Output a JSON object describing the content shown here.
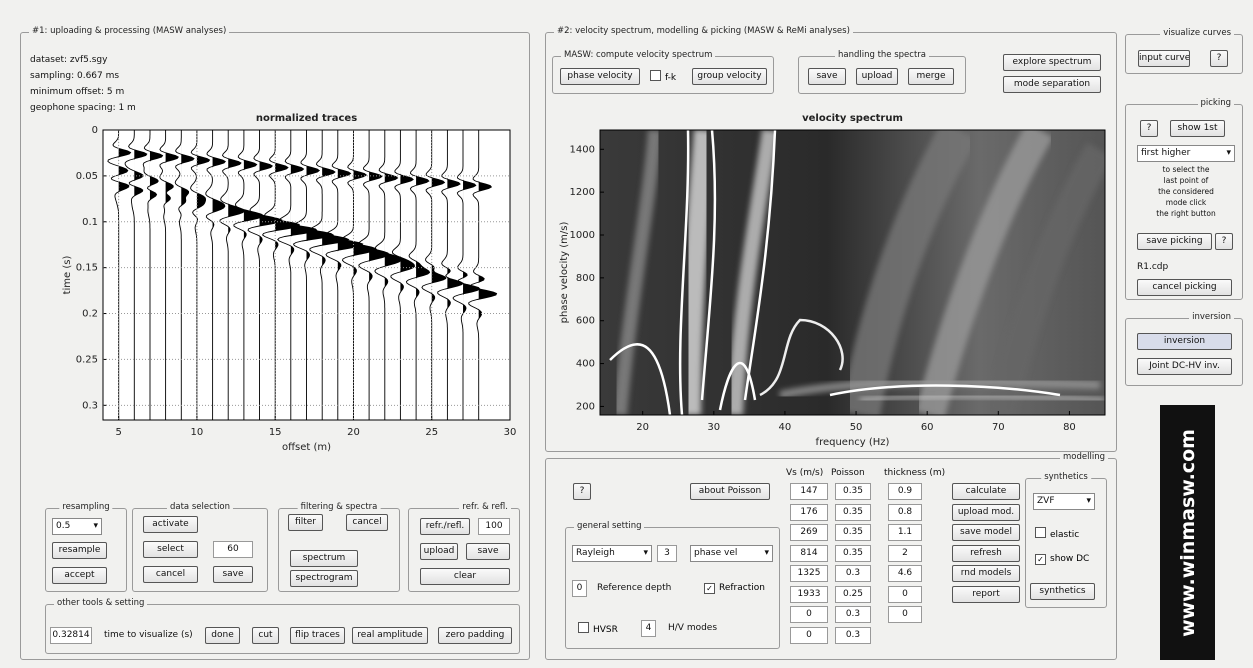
{
  "panel1": {
    "title": "#1: uploading & processing (MASW analyses)",
    "info": [
      "dataset: zvf5.sgy",
      "sampling: 0.667 ms",
      "minimum offset: 5 m",
      "geophone spacing: 1 m"
    ],
    "traces_plot": {
      "title": "normalized traces",
      "xlabel": "offset (m)",
      "ylabel": "time (s)",
      "xlim": [
        4,
        30
      ],
      "xticks": [
        5,
        10,
        15,
        20,
        25,
        30
      ],
      "ylim": [
        0,
        0.316
      ],
      "yticks": [
        0,
        0.05,
        0.1,
        0.15,
        0.2,
        0.25,
        0.3
      ],
      "y_reversed": true,
      "grid": true
    },
    "resampling": {
      "title": "resampling",
      "select": "0.5",
      "buttons": [
        "resample",
        "accept"
      ]
    },
    "data_selection": {
      "title": "data selection",
      "buttons": [
        "activate",
        "select",
        "cancel",
        "save"
      ],
      "input": "60"
    },
    "filtering": {
      "title": "filtering & spectra",
      "buttons": [
        "filter",
        "cancel",
        "spectrum",
        "spectrogram"
      ]
    },
    "refr_refl": {
      "title": "refr. & refl.",
      "buttons": [
        "refr./refl.",
        "upload",
        "save",
        "clear"
      ],
      "input": "100"
    },
    "other_tools": {
      "title": "other tools & setting",
      "input": "0.32814",
      "label": "time to visualize (s)",
      "buttons": [
        "done",
        "cut",
        "flip traces",
        "real amplitude",
        "zero padding"
      ]
    }
  },
  "panel2": {
    "title": "#2: velocity spectrum, modelling & picking (MASW & ReMi analyses)",
    "masw": {
      "title": "MASW: compute velocity spectrum",
      "buttons": [
        "phase velocity",
        "group velocity"
      ],
      "checkbox": {
        "label": "f-k",
        "checked": false
      }
    },
    "handling": {
      "title": "handling the spectra",
      "buttons": [
        "save",
        "upload",
        "merge"
      ]
    },
    "buttons": [
      "explore spectrum",
      "mode separation"
    ],
    "spectrum_plot": {
      "title": "velocity spectrum",
      "xlabel": "frequency (Hz)",
      "ylabel": "phase velocity (m/s)",
      "xlim": [
        14,
        85
      ],
      "xticks": [
        20,
        30,
        40,
        50,
        60,
        70,
        80
      ],
      "ylim": [
        160,
        1490
      ],
      "yticks": [
        200,
        400,
        600,
        800,
        1000,
        1200,
        1400
      ],
      "grid": false
    },
    "modelling": {
      "title": "modelling",
      "help": "?",
      "about": "about Poisson",
      "general": {
        "title": "general setting",
        "wave": "Rayleigh",
        "modes": "3",
        "velocity": "phase vel",
        "ref_value": "0",
        "ref_label": "Reference depth",
        "refraction": {
          "label": "Refraction",
          "checked": true
        },
        "hvsr": {
          "label": "HVSR",
          "checked": false
        },
        "hv_count": "4",
        "hv_label": "H/V modes"
      },
      "table": {
        "headers": [
          "Vs (m/s)",
          "Poisson",
          "thickness (m)"
        ],
        "rows": [
          [
            "147",
            "0.35",
            "0.9"
          ],
          [
            "176",
            "0.35",
            "0.8"
          ],
          [
            "269",
            "0.35",
            "1.1"
          ],
          [
            "814",
            "0.35",
            "2"
          ],
          [
            "1325",
            "0.3",
            "4.6"
          ],
          [
            "1933",
            "0.25",
            "0"
          ],
          [
            "0",
            "0.3",
            "0"
          ],
          [
            "0",
            "0.3"
          ]
        ]
      },
      "buttons": [
        "calculate",
        "upload mod.",
        "save model",
        "refresh",
        "rnd models",
        "report"
      ],
      "synthetics": {
        "title": "synthetics",
        "select": "ZVF",
        "elastic": {
          "label": "elastic",
          "checked": false
        },
        "show_dc": {
          "label": "show DC",
          "checked": true
        },
        "button": "synthetics"
      }
    }
  },
  "right": {
    "visualize": {
      "title": "visualize curves",
      "buttons": [
        "input curve",
        "?"
      ]
    },
    "picking": {
      "title": "picking",
      "help": "?",
      "show": "show 1st",
      "select": "first higher",
      "hint": [
        "to select the",
        "last point of",
        "the considered",
        "mode click",
        "the right button"
      ],
      "save": "save picking",
      "help2": "?",
      "file": "R1.cdp",
      "cancel": "cancel picking"
    },
    "inversion": {
      "title": "inversion",
      "buttons": [
        "inversion",
        "Joint DC-HV inv."
      ]
    },
    "logo": "www.winmasw.com"
  }
}
